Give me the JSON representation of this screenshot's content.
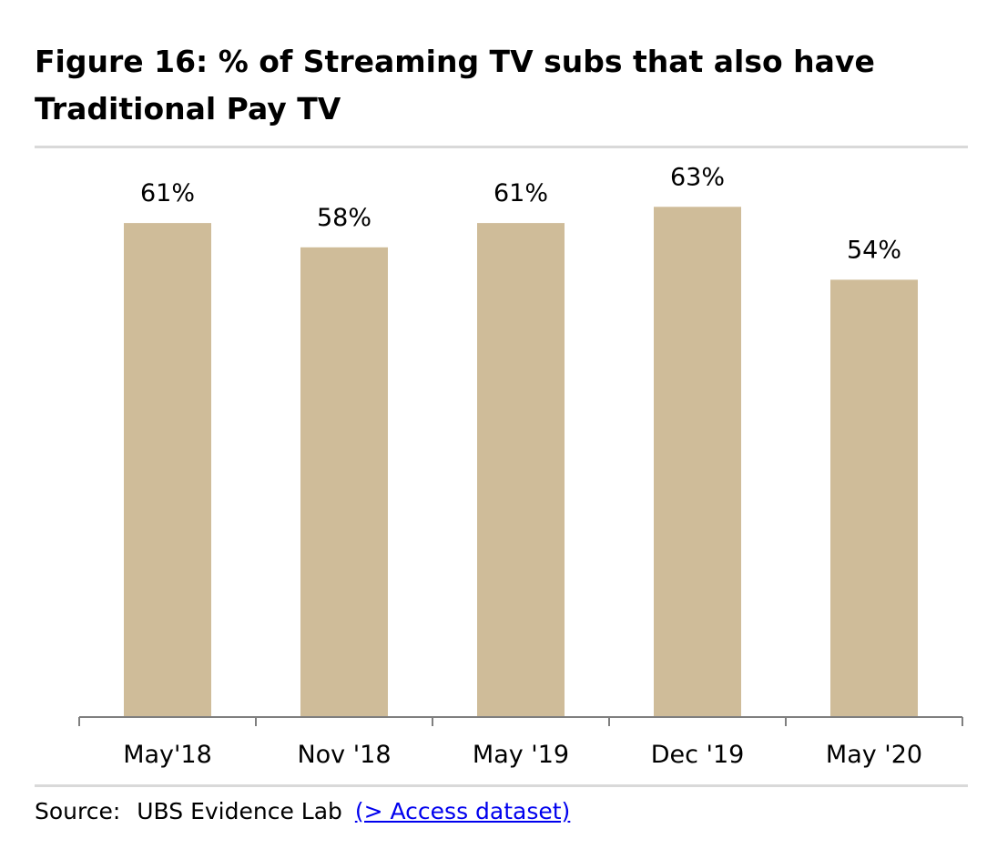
{
  "figure": {
    "title": "Figure 16: % of Streaming TV subs that also have Traditional Pay TV"
  },
  "source": {
    "label": "Source:",
    "text": "UBS Evidence Lab",
    "link_text": "(> Access dataset)"
  },
  "colors": {
    "bar": "#cfbc99",
    "axis": "#7f7f7f",
    "rule": "#d9d9d9",
    "link": "#0000ee"
  },
  "chart_data": {
    "type": "bar",
    "title": "Figure 16: % of Streaming TV subs that also have Traditional Pay TV",
    "xlabel": "",
    "ylabel": "",
    "categories": [
      "May'18",
      "Nov '18",
      "May '19",
      "Dec '19",
      "May '20"
    ],
    "values": [
      61,
      58,
      61,
      63,
      54
    ],
    "value_labels": [
      "61%",
      "58%",
      "61%",
      "63%",
      "54%"
    ],
    "unit": "%",
    "ylim": [
      0,
      70
    ],
    "grid": false,
    "legend": "none"
  }
}
